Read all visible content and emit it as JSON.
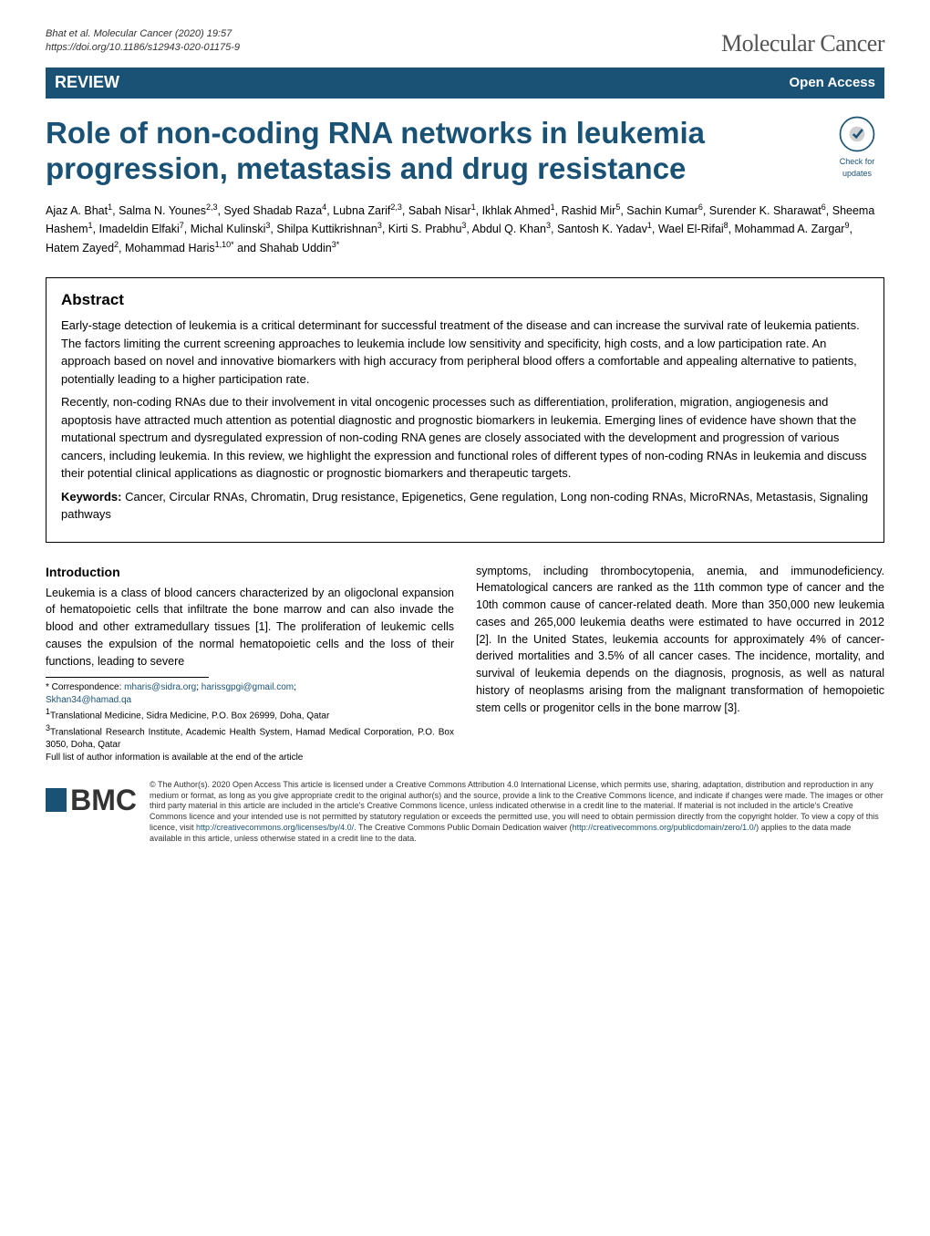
{
  "citation_line1": "Bhat et al. Molecular Cancer          (2020) 19:57",
  "citation_line2": "https://doi.org/10.1186/s12943-020-01175-9",
  "journal_name": "Molecular Cancer",
  "bar_left": "REVIEW",
  "bar_right": "Open Access",
  "title": "Role of non-coding RNA networks in leukemia progression, metastasis and drug resistance",
  "check_label": "Check for updates",
  "authors_html": "Ajaz A. Bhat<sup>1</sup>, Salma N. Younes<sup>2,3</sup>, Syed Shadab Raza<sup>4</sup>, Lubna Zarif<sup>2,3</sup>, Sabah Nisar<sup>1</sup>, Ikhlak Ahmed<sup>1</sup>, Rashid Mir<sup>5</sup>, Sachin Kumar<sup>6</sup>, Surender K. Sharawat<sup>6</sup>, Sheema Hashem<sup>1</sup>, Imadeldin Elfaki<sup>7</sup>, Michal Kulinski<sup>3</sup>, Shilpa Kuttikrishnan<sup>3</sup>, Kirti S. Prabhu<sup>3</sup>, Abdul Q. Khan<sup>3</sup>, Santosh K. Yadav<sup>1</sup>, Wael El-Rifai<sup>8</sup>, Mohammad A. Zargar<sup>9</sup>, Hatem Zayed<sup>2</sup>, Mohammad Haris<sup>1,10*</sup> and Shahab Uddin<sup>3*</sup>",
  "abstract_heading": "Abstract",
  "abstract_p1": "Early-stage detection of leukemia is a critical determinant for successful treatment of the disease and can increase the survival rate of leukemia patients. The factors limiting the current screening approaches to leukemia include low sensitivity and specificity, high costs, and a low participation rate. An approach based on novel and innovative biomarkers with high accuracy from peripheral blood offers a comfortable and appealing alternative to patients, potentially leading to a higher participation rate.",
  "abstract_p2": "Recently, non-coding RNAs due to their involvement in vital oncogenic processes such as differentiation, proliferation, migration, angiogenesis and apoptosis have attracted much attention as potential diagnostic and prognostic biomarkers in leukemia. Emerging lines of evidence have shown that the mutational spectrum and dysregulated expression of non-coding RNA genes are closely associated with the development and progression of various cancers, including leukemia. In this review, we highlight the expression and functional roles of different types of non-coding RNAs in leukemia and discuss their potential clinical applications as diagnostic or prognostic biomarkers and therapeutic targets.",
  "keywords_label": "Keywords:",
  "keywords_text": " Cancer, Circular RNAs, Chromatin, Drug resistance, Epigenetics, Gene regulation, Long non-coding RNAs, MicroRNAs, Metastasis, Signaling pathways",
  "intro_heading": "Introduction",
  "intro_left": "Leukemia is a class of blood cancers characterized by an oligoclonal expansion of hematopoietic cells that infiltrate the bone marrow and can also invade the blood and other extramedullary tissues [1]. The proliferation of leukemic cells causes the expulsion of the normal hematopoietic cells and the loss of their functions, leading to severe",
  "intro_right": "symptoms, including thrombocytopenia, anemia, and immunodeficiency. Hematological cancers are ranked as the 11th common type of cancer and the 10th common cause of cancer-related death. More than 350,000 new leukemia cases and 265,000 leukemia deaths were estimated to have occurred in 2012 [2]. In the United States, leukemia accounts for approximately 4% of cancer-derived mortalities and 3.5% of all cancer cases. The incidence, mortality, and survival of leukemia depends on the diagnosis, prognosis, as well as natural history of neoplasms arising from the malignant transformation of hemopoietic stem cells or progenitor cells in the bone marrow [3].",
  "corr_label": "* Correspondence: ",
  "corr_email1": "mharis@sidra.org",
  "corr_email2": "harissgpgi@gmail.com",
  "corr_email3": "Skhan34@hamad.qa",
  "aff1": "Translational Medicine, Sidra Medicine, P.O. Box 26999, Doha, Qatar",
  "aff3": "Translational Research Institute, Academic Health System, Hamad Medical Corporation, P.O. Box 3050, Doha, Qatar",
  "aff_note": "Full list of author information is available at the end of the article",
  "bmc_text": "BMC",
  "license_text": "© The Author(s). 2020 Open Access This article is licensed under a Creative Commons Attribution 4.0 International License, which permits use, sharing, adaptation, distribution and reproduction in any medium or format, as long as you give appropriate credit to the original author(s) and the source, provide a link to the Creative Commons licence, and indicate if changes were made. The images or other third party material in this article are included in the article's Creative Commons licence, unless indicated otherwise in a credit line to the material. If material is not included in the article's Creative Commons licence and your intended use is not permitted by statutory regulation or exceeds the permitted use, you will need to obtain permission directly from the copyright holder. To view a copy of this licence, visit ",
  "license_url": "http://creativecommons.org/licenses/by/4.0/",
  "license_text2": ". The Creative Commons Public Domain Dedication waiver (",
  "license_url2": "http://creativecommons.org/publicdomain/zero/1.0/",
  "license_text3": ") applies to the data made available in this article, unless otherwise stated in a credit line to the data.",
  "colors": {
    "brand": "#1a5276",
    "text": "#000000",
    "muted": "#555555",
    "bg": "#ffffff"
  }
}
